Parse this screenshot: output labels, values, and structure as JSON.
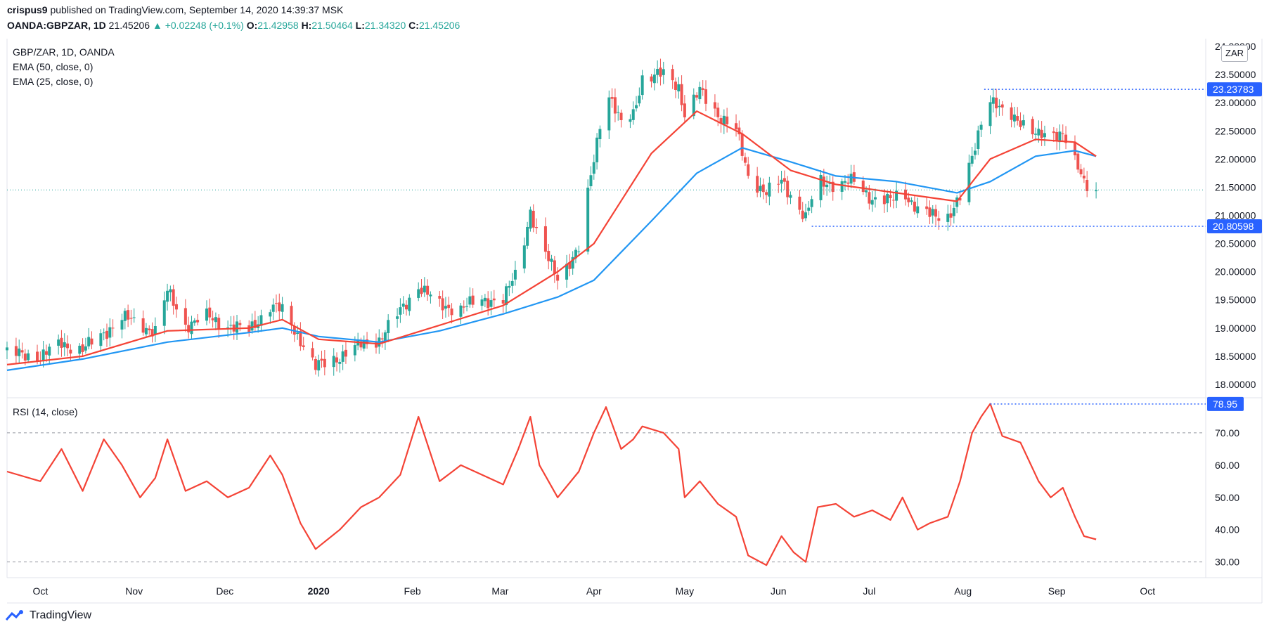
{
  "header": {
    "author": "crispus9",
    "published": "published on TradingView.com, September 14, 2020 14:39:37 MSK",
    "symbol": "OANDA:GBPZAR, 1D",
    "last": "21.45206",
    "arrow": "▲",
    "change": "+0.02248 (+0.1%)",
    "o_label": "O:",
    "o": "21.42958",
    "h_label": "H:",
    "h": "21.50464",
    "l_label": "L:",
    "l": "21.34320",
    "c_label": "C:",
    "c": "21.45206"
  },
  "legend": {
    "line1": "GBP/ZAR, 1D, OANDA",
    "line2": "EMA (50, close, 0)",
    "line3": "EMA (25, close, 0)",
    "rsi": "RSI (14, close)"
  },
  "currency_button": "ZAR",
  "footer": {
    "brand": "TradingView"
  },
  "colors": {
    "up": "#26a69a",
    "down": "#ef5350",
    "ema50": "#2196f3",
    "ema25": "#f44336",
    "rsi": "#f44336",
    "accent": "#2962ff"
  },
  "chart_data": [
    {
      "type": "candlestick",
      "title": "GBP/ZAR, 1D, OANDA",
      "ylim": [
        17.8,
        24.1
      ],
      "y_ticks": [
        "18.00000",
        "18.50000",
        "19.00000",
        "19.50000",
        "20.00000",
        "20.50000",
        "21.00000",
        "21.50000",
        "22.00000",
        "22.50000",
        "23.00000",
        "23.50000",
        "24.00000"
      ],
      "x_ticks": [
        "Oct",
        "Nov",
        "Dec",
        "2020",
        "Feb",
        "Mar",
        "Apr",
        "May",
        "Jun",
        "Jul",
        "Aug",
        "Sep",
        "Oct"
      ],
      "close_series": [
        [
          "2019-09-20",
          18.55
        ],
        [
          "2019-10-01",
          18.5
        ],
        [
          "2019-10-08",
          18.72
        ],
        [
          "2019-10-15",
          18.62
        ],
        [
          "2019-10-22",
          18.9
        ],
        [
          "2019-10-28",
          19.2
        ],
        [
          "2019-11-03",
          19.05
        ],
        [
          "2019-11-08",
          18.95
        ],
        [
          "2019-11-12",
          19.65
        ],
        [
          "2019-11-18",
          19.05
        ],
        [
          "2019-11-25",
          19.2
        ],
        [
          "2019-12-02",
          19.05
        ],
        [
          "2019-12-09",
          18.95
        ],
        [
          "2019-12-16",
          19.4
        ],
        [
          "2019-12-20",
          19.3
        ],
        [
          "2019-12-26",
          18.8
        ],
        [
          "2019-12-31",
          18.3
        ],
        [
          "2020-01-08",
          18.5
        ],
        [
          "2020-01-15",
          18.7
        ],
        [
          "2020-01-21",
          18.8
        ],
        [
          "2020-01-28",
          19.3
        ],
        [
          "2020-02-03",
          19.75
        ],
        [
          "2020-02-10",
          19.4
        ],
        [
          "2020-02-17",
          19.35
        ],
        [
          "2020-02-24",
          19.5
        ],
        [
          "2020-03-02",
          19.5
        ],
        [
          "2020-03-07",
          20.05
        ],
        [
          "2020-03-11",
          21.1
        ],
        [
          "2020-03-14",
          20.5
        ],
        [
          "2020-03-20",
          19.9
        ],
        [
          "2020-03-27",
          20.4
        ],
        [
          "2020-04-01",
          22.0
        ],
        [
          "2020-04-05",
          23.3
        ],
        [
          "2020-04-10",
          22.6
        ],
        [
          "2020-04-14",
          22.8
        ],
        [
          "2020-04-17",
          23.45
        ],
        [
          "2020-04-24",
          23.5
        ],
        [
          "2020-04-29",
          23.3
        ],
        [
          "2020-05-01",
          22.8
        ],
        [
          "2020-05-06",
          23.2
        ],
        [
          "2020-05-12",
          22.8
        ],
        [
          "2020-05-18",
          22.5
        ],
        [
          "2020-05-22",
          21.7
        ],
        [
          "2020-05-28",
          21.4
        ],
        [
          "2020-06-02",
          21.6
        ],
        [
          "2020-06-06",
          21.3
        ],
        [
          "2020-06-10",
          20.95
        ],
        [
          "2020-06-14",
          21.6
        ],
        [
          "2020-06-20",
          21.55
        ],
        [
          "2020-06-26",
          21.6
        ],
        [
          "2020-07-02",
          21.3
        ],
        [
          "2020-07-08",
          21.25
        ],
        [
          "2020-07-12",
          21.45
        ],
        [
          "2020-07-17",
          21.1
        ],
        [
          "2020-07-21",
          21.0
        ],
        [
          "2020-07-27",
          21.0
        ],
        [
          "2020-07-31",
          21.3
        ],
        [
          "2020-08-04",
          22.0
        ],
        [
          "2020-08-07",
          22.7
        ],
        [
          "2020-08-10",
          23.1
        ],
        [
          "2020-08-14",
          22.8
        ],
        [
          "2020-08-20",
          22.7
        ],
        [
          "2020-08-26",
          22.4
        ],
        [
          "2020-08-30",
          22.4
        ],
        [
          "2020-09-03",
          22.5
        ],
        [
          "2020-09-07",
          21.95
        ],
        [
          "2020-09-10",
          21.55
        ],
        [
          "2020-09-14",
          21.45
        ]
      ],
      "ema50": [
        [
          "2019-09-20",
          18.25
        ],
        [
          "2019-10-15",
          18.45
        ],
        [
          "2019-11-12",
          18.75
        ],
        [
          "2019-12-09",
          18.92
        ],
        [
          "2019-12-20",
          19.0
        ],
        [
          "2020-01-01",
          18.85
        ],
        [
          "2020-01-21",
          18.75
        ],
        [
          "2020-02-10",
          18.95
        ],
        [
          "2020-03-02",
          19.25
        ],
        [
          "2020-03-20",
          19.55
        ],
        [
          "2020-04-01",
          19.85
        ],
        [
          "2020-04-20",
          20.9
        ],
        [
          "2020-05-05",
          21.75
        ],
        [
          "2020-05-20",
          22.2
        ],
        [
          "2020-06-05",
          21.95
        ],
        [
          "2020-06-20",
          21.7
        ],
        [
          "2020-07-10",
          21.6
        ],
        [
          "2020-07-30",
          21.4
        ],
        [
          "2020-08-10",
          21.6
        ],
        [
          "2020-08-25",
          22.05
        ],
        [
          "2020-09-07",
          22.15
        ],
        [
          "2020-09-14",
          22.05
        ]
      ],
      "ema25": [
        [
          "2019-09-20",
          18.35
        ],
        [
          "2019-10-15",
          18.5
        ],
        [
          "2019-11-12",
          18.95
        ],
        [
          "2019-12-09",
          19.0
        ],
        [
          "2019-12-20",
          19.15
        ],
        [
          "2020-01-01",
          18.8
        ],
        [
          "2020-01-21",
          18.72
        ],
        [
          "2020-02-10",
          19.05
        ],
        [
          "2020-03-02",
          19.4
        ],
        [
          "2020-03-20",
          20.0
        ],
        [
          "2020-04-01",
          20.5
        ],
        [
          "2020-04-20",
          22.1
        ],
        [
          "2020-05-05",
          22.85
        ],
        [
          "2020-05-20",
          22.45
        ],
        [
          "2020-06-05",
          21.8
        ],
        [
          "2020-06-20",
          21.55
        ],
        [
          "2020-07-10",
          21.4
        ],
        [
          "2020-07-30",
          21.25
        ],
        [
          "2020-08-10",
          22.0
        ],
        [
          "2020-08-25",
          22.35
        ],
        [
          "2020-09-07",
          22.3
        ],
        [
          "2020-09-14",
          22.05
        ]
      ],
      "price_labels": {
        "high": {
          "value": 23.23783,
          "text": "23.23783",
          "start": "2020-08-08"
        },
        "low": {
          "value": 20.80598,
          "text": "20.80598",
          "start": "2020-06-12"
        },
        "last": 21.45206
      }
    },
    {
      "type": "line",
      "title": "RSI (14, close)",
      "ylim": [
        26,
        80
      ],
      "y_ticks": [
        "30.00",
        "40.00",
        "50.00",
        "60.00",
        "70.00"
      ],
      "bands": [
        30,
        70
      ],
      "series": [
        {
          "values": [
            [
              "2019-09-20",
              58
            ],
            [
              "2019-10-01",
              55
            ],
            [
              "2019-10-08",
              65
            ],
            [
              "2019-10-15",
              52
            ],
            [
              "2019-10-22",
              68
            ],
            [
              "2019-10-28",
              60
            ],
            [
              "2019-11-03",
              50
            ],
            [
              "2019-11-08",
              56
            ],
            [
              "2019-11-12",
              68
            ],
            [
              "2019-11-18",
              52
            ],
            [
              "2019-11-25",
              55
            ],
            [
              "2019-12-02",
              50
            ],
            [
              "2019-12-09",
              53
            ],
            [
              "2019-12-16",
              63
            ],
            [
              "2019-12-20",
              57
            ],
            [
              "2019-12-26",
              42
            ],
            [
              "2019-12-31",
              34
            ],
            [
              "2020-01-08",
              40
            ],
            [
              "2020-01-15",
              47
            ],
            [
              "2020-01-21",
              50
            ],
            [
              "2020-01-28",
              57
            ],
            [
              "2020-02-03",
              75
            ],
            [
              "2020-02-10",
              55
            ],
            [
              "2020-02-17",
              60
            ],
            [
              "2020-02-24",
              57
            ],
            [
              "2020-03-02",
              54
            ],
            [
              "2020-03-07",
              65
            ],
            [
              "2020-03-11",
              75
            ],
            [
              "2020-03-14",
              60
            ],
            [
              "2020-03-20",
              50
            ],
            [
              "2020-03-27",
              58
            ],
            [
              "2020-04-01",
              70
            ],
            [
              "2020-04-05",
              78
            ],
            [
              "2020-04-10",
              65
            ],
            [
              "2020-04-14",
              68
            ],
            [
              "2020-04-17",
              72
            ],
            [
              "2020-04-24",
              70
            ],
            [
              "2020-04-29",
              65
            ],
            [
              "2020-05-01",
              50
            ],
            [
              "2020-05-06",
              55
            ],
            [
              "2020-05-12",
              48
            ],
            [
              "2020-05-18",
              44
            ],
            [
              "2020-05-22",
              32
            ],
            [
              "2020-05-28",
              29
            ],
            [
              "2020-06-02",
              38
            ],
            [
              "2020-06-06",
              33
            ],
            [
              "2020-06-10",
              30
            ],
            [
              "2020-06-14",
              47
            ],
            [
              "2020-06-20",
              48
            ],
            [
              "2020-06-26",
              44
            ],
            [
              "2020-07-02",
              46
            ],
            [
              "2020-07-08",
              43
            ],
            [
              "2020-07-12",
              50
            ],
            [
              "2020-07-17",
              40
            ],
            [
              "2020-07-21",
              42
            ],
            [
              "2020-07-27",
              44
            ],
            [
              "2020-07-31",
              55
            ],
            [
              "2020-08-04",
              70
            ],
            [
              "2020-08-07",
              75
            ],
            [
              "2020-08-10",
              79
            ],
            [
              "2020-08-14",
              69
            ],
            [
              "2020-08-20",
              67
            ],
            [
              "2020-08-26",
              55
            ],
            [
              "2020-08-30",
              50
            ],
            [
              "2020-09-03",
              53
            ],
            [
              "2020-09-07",
              44
            ],
            [
              "2020-09-10",
              38
            ],
            [
              "2020-09-14",
              37
            ]
          ]
        }
      ],
      "high_label": {
        "value": 78.95,
        "text": "78.95",
        "start": "2020-08-10"
      }
    }
  ]
}
